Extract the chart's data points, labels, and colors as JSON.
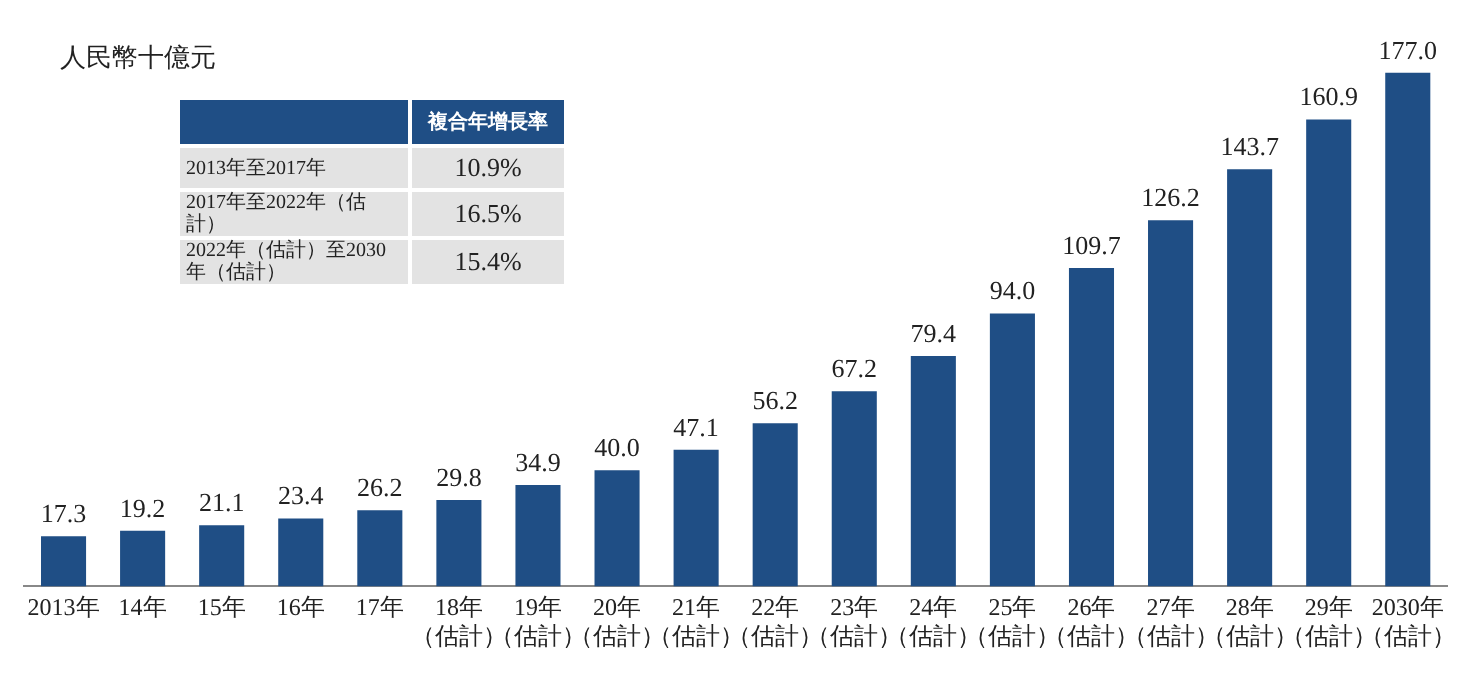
{
  "chart_data": {
    "type": "bar",
    "ylabel": "人民幣十億元",
    "categories": [
      "2013年",
      "14年",
      "15年",
      "16年",
      "17年",
      "18年（估計）",
      "19年（估計）",
      "20年（估計）",
      "21年（估計）",
      "22年（估計）",
      "23年（估計）",
      "24年（估計）",
      "25年（估計）",
      "26年（估計）",
      "27年（估計）",
      "28年（估計）",
      "29年（估計）",
      "2030年（估計）"
    ],
    "value_labels": [
      "17.3",
      "19.2",
      "21.1",
      "23.4",
      "26.2",
      "29.8",
      "34.9",
      "40.0",
      "47.1",
      "56.2",
      "67.2",
      "79.4",
      "94.0",
      "109.7",
      "126.2",
      "143.7",
      "160.9",
      "177.0"
    ],
    "values": [
      17.3,
      19.2,
      21.1,
      23.4,
      26.2,
      29.8,
      34.9,
      40.0,
      47.1,
      56.2,
      67.2,
      79.4,
      94.0,
      109.7,
      126.2,
      143.7,
      160.9,
      177.0
    ],
    "color": "#1f4e85",
    "tick_labels": "x",
    "grid": false,
    "legend": false,
    "annotations": [
      "複合年增長率",
      "2013年至2017年",
      "10.9%",
      "2017年至2022年（估計）",
      "16.5%",
      "2022年（估計）至2030年（估計）",
      "15.4%"
    ]
  }
}
